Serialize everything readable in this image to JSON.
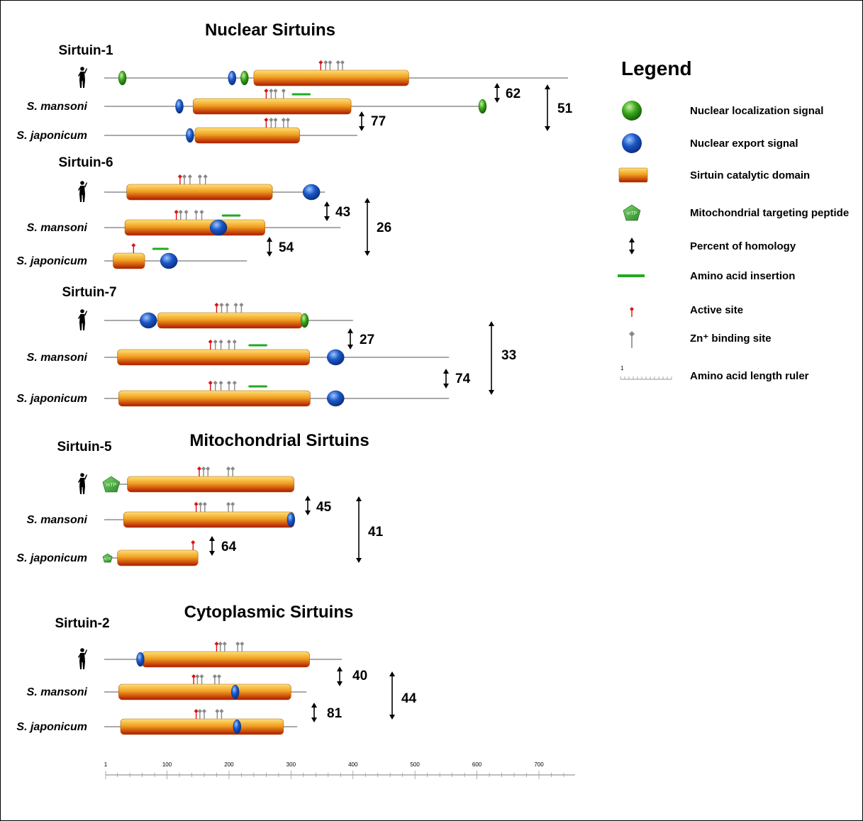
{
  "sections": [
    {
      "title": "Nuclear Sirtuins"
    },
    {
      "title": "Mitochondrial Sirtuins"
    },
    {
      "title": "Cytoplasmic Sirtuins"
    }
  ],
  "groups": [
    {
      "name": "Sirtuin-1",
      "rows": [
        {
          "species": "",
          "human": true,
          "length": 747,
          "domains": [
            {
              "type": "catalytic",
              "start": 240,
              "end": 490
            }
          ],
          "signals": [
            {
              "type": "nls",
              "pos": 28
            },
            {
              "type": "nes",
              "pos": 205
            },
            {
              "type": "nls",
              "pos": 225
            }
          ],
          "sites": [
            {
              "type": "active",
              "pos": 348
            },
            {
              "type": "zn",
              "pos": 356
            },
            {
              "type": "zn",
              "pos": 363
            },
            {
              "type": "zn",
              "pos": 376
            },
            {
              "type": "zn",
              "pos": 383
            }
          ],
          "insertions": []
        },
        {
          "species": "S. mansoni",
          "length": 612,
          "domains": [
            {
              "type": "catalytic",
              "start": 142,
              "end": 397
            }
          ],
          "signals": [
            {
              "type": "nes",
              "pos": 120
            },
            {
              "type": "nls",
              "pos": 609
            }
          ],
          "sites": [
            {
              "type": "active",
              "pos": 260
            },
            {
              "type": "zn",
              "pos": 268
            },
            {
              "type": "zn",
              "pos": 275
            },
            {
              "type": "zn",
              "pos": 288
            }
          ],
          "insertions": [
            {
              "start": 303,
              "end": 330
            }
          ]
        },
        {
          "species": "S. japonicum",
          "length": 407,
          "domains": [
            {
              "type": "catalytic",
              "start": 145,
              "end": 314
            }
          ],
          "signals": [
            {
              "type": "nes",
              "pos": 137
            }
          ],
          "sites": [
            {
              "type": "active",
              "pos": 260
            },
            {
              "type": "zn",
              "pos": 268
            },
            {
              "type": "zn",
              "pos": 275
            },
            {
              "type": "zn",
              "pos": 288
            },
            {
              "type": "zn",
              "pos": 295
            }
          ],
          "insertions": []
        }
      ],
      "homology": [
        {
          "value": "62"
        },
        {
          "value": "77"
        },
        {
          "value": "51"
        }
      ]
    },
    {
      "name": "Sirtuin-6",
      "rows": [
        {
          "species": "",
          "human": true,
          "length": 355,
          "domains": [
            {
              "type": "catalytic",
              "start": 35,
              "end": 270
            }
          ],
          "signals": [
            {
              "type": "nes",
              "pos": 333
            }
          ],
          "sites": [
            {
              "type": "active",
              "pos": 121
            },
            {
              "type": "zn",
              "pos": 128
            },
            {
              "type": "zn",
              "pos": 137
            },
            {
              "type": "zn",
              "pos": 153
            },
            {
              "type": "zn",
              "pos": 162
            }
          ],
          "insertions": []
        },
        {
          "species": "S. mansoni",
          "length": 380,
          "domains": [
            {
              "type": "catalytic",
              "start": 32,
              "end": 258
            }
          ],
          "signals": [
            {
              "type": "nes",
              "pos": 183
            }
          ],
          "sites": [
            {
              "type": "active",
              "pos": 115
            },
            {
              "type": "zn",
              "pos": 122
            },
            {
              "type": "zn",
              "pos": 131
            },
            {
              "type": "zn",
              "pos": 147
            },
            {
              "type": "zn",
              "pos": 156
            }
          ],
          "insertions": [
            {
              "start": 190,
              "end": 217
            }
          ]
        },
        {
          "species": "S. japonicum",
          "length": 229,
          "domains": [
            {
              "type": "catalytic",
              "start": 13,
              "end": 64
            }
          ],
          "signals": [
            {
              "type": "nes",
              "pos": 103
            }
          ],
          "sites": [
            {
              "type": "active",
              "pos": 46
            }
          ],
          "insertions": [
            {
              "start": 78,
              "end": 101
            }
          ]
        }
      ],
      "homology": [
        {
          "value": "43"
        },
        {
          "value": "54"
        },
        {
          "value": "26"
        }
      ]
    },
    {
      "name": "Sirtuin-7",
      "rows": [
        {
          "species": "",
          "human": true,
          "length": 400,
          "domains": [
            {
              "type": "catalytic",
              "start": 85,
              "end": 318
            }
          ],
          "signals": [
            {
              "type": "nes",
              "pos": 70
            },
            {
              "type": "nls",
              "pos": 322
            }
          ],
          "sites": [
            {
              "type": "active",
              "pos": 180
            },
            {
              "type": "zn",
              "pos": 188
            },
            {
              "type": "zn",
              "pos": 197
            },
            {
              "type": "zn",
              "pos": 211
            },
            {
              "type": "zn",
              "pos": 220
            }
          ],
          "insertions": []
        },
        {
          "species": "S. mansoni",
          "length": 555,
          "domains": [
            {
              "type": "catalytic",
              "start": 20,
              "end": 330
            }
          ],
          "signals": [
            {
              "type": "nes",
              "pos": 372
            }
          ],
          "sites": [
            {
              "type": "active",
              "pos": 170
            },
            {
              "type": "zn",
              "pos": 178
            },
            {
              "type": "zn",
              "pos": 187
            },
            {
              "type": "zn",
              "pos": 200
            },
            {
              "type": "zn",
              "pos": 209
            }
          ],
          "insertions": [
            {
              "start": 233,
              "end": 260
            }
          ]
        },
        {
          "species": "S. japonicum",
          "length": 555,
          "domains": [
            {
              "type": "catalytic",
              "start": 22,
              "end": 331
            }
          ],
          "signals": [
            {
              "type": "nes",
              "pos": 372
            }
          ],
          "sites": [
            {
              "type": "active",
              "pos": 170
            },
            {
              "type": "zn",
              "pos": 178
            },
            {
              "type": "zn",
              "pos": 187
            },
            {
              "type": "zn",
              "pos": 200
            },
            {
              "type": "zn",
              "pos": 209
            }
          ],
          "insertions": [
            {
              "start": 233,
              "end": 260
            }
          ]
        }
      ],
      "homology": [
        {
          "value": "27"
        },
        {
          "value": "74"
        },
        {
          "value": "33"
        }
      ]
    },
    {
      "name": "Sirtuin-5",
      "rows": [
        {
          "species": "",
          "human": true,
          "length": 305,
          "domains": [
            {
              "type": "catalytic",
              "start": 36,
              "end": 305
            }
          ],
          "signals": [
            {
              "type": "mtp",
              "pos": 10
            }
          ],
          "sites": [
            {
              "type": "active",
              "pos": 152
            },
            {
              "type": "zn",
              "pos": 159
            },
            {
              "type": "zn",
              "pos": 166
            },
            {
              "type": "zn",
              "pos": 199
            },
            {
              "type": "zn",
              "pos": 206
            }
          ],
          "insertions": []
        },
        {
          "species": "S. mansoni",
          "length": 306,
          "domains": [
            {
              "type": "catalytic",
              "start": 30,
              "end": 305
            }
          ],
          "signals": [
            {
              "type": "nes",
              "pos": 300
            }
          ],
          "sites": [
            {
              "type": "active",
              "pos": 147
            },
            {
              "type": "zn",
              "pos": 154
            },
            {
              "type": "zn",
              "pos": 161
            },
            {
              "type": "zn",
              "pos": 199
            },
            {
              "type": "zn",
              "pos": 206
            }
          ],
          "insertions": []
        },
        {
          "species": "S. japonicum",
          "length": 150,
          "domains": [
            {
              "type": "catalytic",
              "start": 20,
              "end": 150
            }
          ],
          "signals": [
            {
              "type": "mtp",
              "pos": 4
            }
          ],
          "sites": [
            {
              "type": "active",
              "pos": 142
            }
          ],
          "insertions": []
        }
      ],
      "homology": [
        {
          "value": "45"
        },
        {
          "value": "64"
        },
        {
          "value": "41"
        }
      ]
    },
    {
      "name": "Sirtuin-2",
      "rows": [
        {
          "species": "",
          "human": true,
          "length": 382,
          "domains": [
            {
              "type": "catalytic",
              "start": 60,
              "end": 330
            }
          ],
          "signals": [
            {
              "type": "nes",
              "pos": 57
            }
          ],
          "sites": [
            {
              "type": "active",
              "pos": 180
            },
            {
              "type": "zn",
              "pos": 186
            },
            {
              "type": "zn",
              "pos": 193
            },
            {
              "type": "zn",
              "pos": 214
            },
            {
              "type": "zn",
              "pos": 221
            }
          ],
          "insertions": []
        },
        {
          "species": "S. mansoni",
          "length": 325,
          "domains": [
            {
              "type": "catalytic",
              "start": 22,
              "end": 300
            }
          ],
          "signals": [
            {
              "type": "nes",
              "pos": 210
            }
          ],
          "sites": [
            {
              "type": "active",
              "pos": 143
            },
            {
              "type": "zn",
              "pos": 149
            },
            {
              "type": "zn",
              "pos": 156
            },
            {
              "type": "zn",
              "pos": 177
            },
            {
              "type": "zn",
              "pos": 184
            }
          ],
          "insertions": []
        },
        {
          "species": "S. japonicum",
          "length": 310,
          "domains": [
            {
              "type": "catalytic",
              "start": 25,
              "end": 288
            }
          ],
          "signals": [
            {
              "type": "nes",
              "pos": 213
            }
          ],
          "sites": [
            {
              "type": "active",
              "pos": 147
            },
            {
              "type": "zn",
              "pos": 153
            },
            {
              "type": "zn",
              "pos": 160
            },
            {
              "type": "zn",
              "pos": 181
            },
            {
              "type": "zn",
              "pos": 188
            }
          ],
          "insertions": []
        }
      ],
      "homology": [
        {
          "value": "40"
        },
        {
          "value": "81"
        },
        {
          "value": "44"
        }
      ]
    }
  ],
  "legend": {
    "title": "Legend",
    "items": [
      {
        "symbol": "nls",
        "label": "Nuclear localization signal"
      },
      {
        "symbol": "nes",
        "label": "Nuclear export signal"
      },
      {
        "symbol": "catalytic",
        "label": "Sirtuin catalytic domain"
      },
      {
        "symbol": "mtp",
        "label": "Mitochondrial targeting peptide"
      },
      {
        "symbol": "homology",
        "label": "Percent of homology"
      },
      {
        "symbol": "insertion",
        "label": "Amino acid insertion"
      },
      {
        "symbol": "active",
        "label": "Active site"
      },
      {
        "symbol": "zn",
        "label": "Zn⁺ binding site"
      },
      {
        "symbol": "ruler",
        "label": "Amino acid length ruler"
      }
    ],
    "ruler_start": "1"
  },
  "ruler": {
    "labels": [
      "1",
      "100",
      "200",
      "300",
      "400",
      "500",
      "600",
      "700"
    ],
    "mtp_text": "mTP"
  },
  "colors": {
    "catalytic_top": "#ffe07a",
    "catalytic_mid": "#f0a020",
    "catalytic_bottom": "#b01800",
    "nls": "#3aa81a",
    "nes": "#1a58c8",
    "mtp": "#2a8a2a",
    "insertion": "#22aa22",
    "active": "#dd1111",
    "zn": "#888888",
    "line": "#aaaaaa"
  }
}
